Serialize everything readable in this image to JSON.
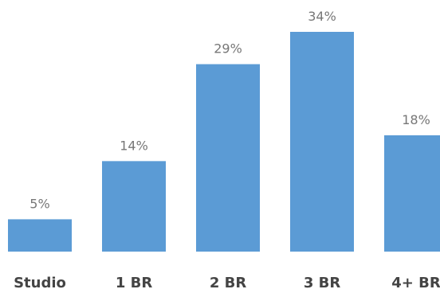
{
  "chart_data": {
    "type": "bar",
    "categories": [
      "Studio",
      "1 BR",
      "2 BR",
      "3 BR",
      "4+ BR"
    ],
    "values": [
      5,
      14,
      29,
      34,
      18
    ],
    "value_labels": [
      "5%",
      "14%",
      "29%",
      "34%",
      "18%"
    ],
    "unit": "%",
    "title": "",
    "xlabel": "",
    "ylabel": "",
    "ylim": [
      0,
      34
    ],
    "grid": false,
    "legend": "none",
    "bar_color": "#5B9BD5"
  }
}
